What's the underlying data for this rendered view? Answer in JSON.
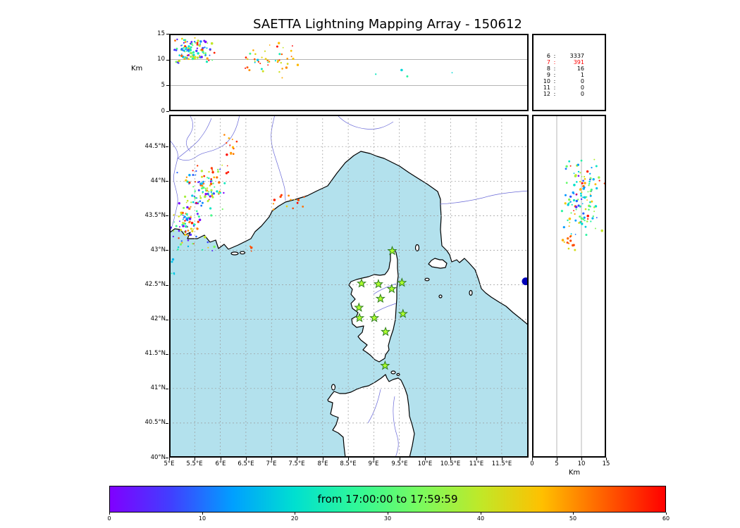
{
  "title": "SAETTA Lightning Mapping Array - 150612",
  "station_counts": {
    "rows": [
      {
        "stations": "6",
        "count": "3337",
        "color": "#000000"
      },
      {
        "stations": "7",
        "count": "391",
        "color": "#ff0000"
      },
      {
        "stations": "8",
        "count": "16",
        "color": "#000000"
      },
      {
        "stations": "9",
        "count": "1",
        "color": "#000000"
      },
      {
        "stations": "10",
        "count": "0",
        "color": "#000000"
      },
      {
        "stations": "11",
        "count": "0",
        "color": "#000000"
      },
      {
        "stations": "12",
        "count": "0",
        "color": "#000000"
      }
    ]
  },
  "colorbar": {
    "label": "from 17:00:00 to 17:59:59",
    "ticks": [
      "0",
      "10",
      "20",
      "30",
      "40",
      "50",
      "60"
    ],
    "gradient": [
      "#8000ff",
      "#4040ff",
      "#00a0ff",
      "#00e0d0",
      "#30f898",
      "#78fb60",
      "#c0e828",
      "#ffc000",
      "#ff6000",
      "#ff0000"
    ]
  },
  "map_colors": {
    "sea": "#b3e1ed",
    "land": "#ffffff",
    "coast": "#000000",
    "river": "#6a6ad8",
    "grid": "#9a9a9a"
  },
  "stations": {
    "marker": "star",
    "marker_color": "#adff2f",
    "marker_edge": "#2f7d1e",
    "points": [
      [
        9.36,
        42.99
      ],
      [
        8.76,
        42.52
      ],
      [
        9.09,
        42.51
      ],
      [
        9.35,
        42.44
      ],
      [
        9.55,
        42.53
      ],
      [
        9.13,
        42.3
      ],
      [
        8.71,
        42.17
      ],
      [
        9.57,
        42.08
      ],
      [
        8.72,
        42.02
      ],
      [
        9.01,
        42.02
      ],
      [
        9.23,
        41.82
      ],
      [
        9.22,
        41.33
      ]
    ]
  },
  "edge_marker": {
    "lon": 11.97,
    "lat": 42.55,
    "color": "#0000b8"
  },
  "chart_data": [
    {
      "id": "alt_lon",
      "type": "scatter",
      "title": "source altitude (km) vs longitude",
      "ylabel": "Km",
      "xlim": [
        5,
        12.025
      ],
      "ylim": [
        0,
        15
      ],
      "yticks": [
        0,
        5,
        10,
        15
      ],
      "grid_y": [
        5,
        10
      ],
      "clusters": [
        {
          "n": 115,
          "x": [
            5.0,
            5.95
          ],
          "y": [
            8.6,
            15.0
          ],
          "t": [
            0,
            60
          ],
          "seed": 101
        },
        {
          "n": 40,
          "x": [
            6.25,
            7.65
          ],
          "y": [
            6.0,
            13.5
          ],
          "t": [
            40,
            60
          ],
          "seed": 102
        },
        {
          "n": 7,
          "x": [
            6.4,
            7.5
          ],
          "y": [
            7.0,
            12.5
          ],
          "t": [
            16,
            30
          ],
          "seed": 103
        },
        {
          "n": 4,
          "x": [
            7.6,
            10.6
          ],
          "y": [
            6.5,
            8.5
          ],
          "t": [
            14,
            26
          ],
          "seed": 104
        }
      ]
    },
    {
      "id": "map",
      "type": "scatter",
      "title": "source locations map (lon vs lat)",
      "xlim": [
        5,
        12.025
      ],
      "ylim": [
        40,
        44.96
      ],
      "xticks": [
        5,
        5.5,
        6,
        6.5,
        7,
        7.5,
        8,
        8.5,
        9,
        9.5,
        10,
        10.5,
        11,
        11.5
      ],
      "xtick_labels": [
        "5°E",
        "5.5°E",
        "6°E",
        "6.5°E",
        "7°E",
        "7.5°E",
        "8°E",
        "8.5°E",
        "9°E",
        "9.5°E",
        "10°E",
        "10.5°E",
        "11°E",
        "11.5°E"
      ],
      "yticks": [
        40,
        40.5,
        41,
        41.5,
        42,
        42.5,
        43,
        43.5,
        44,
        44.5
      ],
      "ytick_labels": [
        "40°N",
        "40.5°N",
        "41°N",
        "41.5°N",
        "42°N",
        "42.5°N",
        "43°N",
        "43.5°N",
        "44°N",
        "44.5°N"
      ],
      "grid": "dashed",
      "clusters": [
        {
          "n": 85,
          "x": [
            5.0,
            5.65
          ],
          "y": [
            42.95,
            43.8
          ],
          "t": [
            0,
            60
          ],
          "seed": 201
        },
        {
          "n": 85,
          "x": [
            5.25,
            6.2
          ],
          "y": [
            43.55,
            44.25
          ],
          "t": [
            0,
            60
          ],
          "seed": 202
        },
        {
          "n": 25,
          "x": [
            5.0,
            6.35
          ],
          "y": [
            42.9,
            44.3
          ],
          "t": [
            0,
            60
          ],
          "seed": 203
        },
        {
          "n": 12,
          "x": [
            6.0,
            6.4
          ],
          "y": [
            44.3,
            44.7
          ],
          "t": [
            46,
            60
          ],
          "seed": 204
        },
        {
          "n": 14,
          "x": [
            6.9,
            7.7
          ],
          "y": [
            43.55,
            43.9
          ],
          "t": [
            42,
            60
          ],
          "seed": 205
        },
        {
          "n": 3,
          "x": [
            6.45,
            6.65
          ],
          "y": [
            42.95,
            43.1
          ],
          "t": [
            50,
            58
          ],
          "seed": 206
        },
        {
          "n": 5,
          "x": [
            5.0,
            5.15
          ],
          "y": [
            42.55,
            42.95
          ],
          "t": [
            14,
            26
          ],
          "seed": 207
        }
      ]
    },
    {
      "id": "alt_lat",
      "type": "scatter",
      "title": "source altitude (km) vs latitude",
      "xlabel": "Km",
      "xlim": [
        0,
        15
      ],
      "ylim": [
        40,
        44.96
      ],
      "xticks": [
        0,
        5,
        10,
        15
      ],
      "grid_x": [
        5,
        10
      ],
      "clusters": [
        {
          "n": 125,
          "x": [
            5.5,
            15.0
          ],
          "y": [
            43.15,
            44.35
          ],
          "t": [
            0,
            60
          ],
          "seed": 301
        },
        {
          "n": 12,
          "x": [
            5.5,
            9.0
          ],
          "y": [
            42.95,
            43.25
          ],
          "t": [
            42,
            60
          ],
          "seed": 302
        }
      ]
    }
  ]
}
